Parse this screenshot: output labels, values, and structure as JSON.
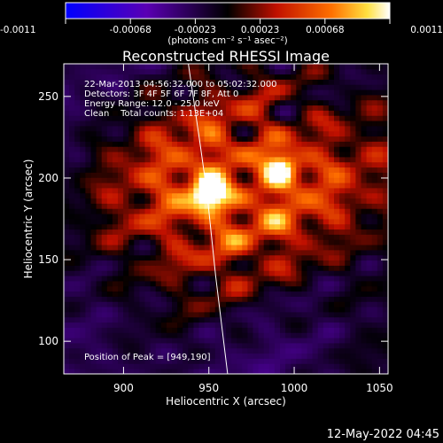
{
  "colorbar": {
    "ticks": [
      "-0.0011",
      "-0.00068",
      "-0.00023",
      "0.00023",
      "0.00068",
      "0.0011"
    ],
    "units": "(photons cm⁻² s⁻¹ asec⁻²)"
  },
  "chart_data": {
    "type": "heatmap",
    "title": "Reconstructed RHESSI Image",
    "xlabel": "Heliocentric X (arcsec)",
    "ylabel": "Heliocentric Y (arcsec)",
    "xlim": [
      865,
      1055
    ],
    "ylim": [
      80,
      270
    ],
    "xticks": [
      900,
      950,
      1000,
      1050
    ],
    "yticks": [
      100,
      150,
      200,
      250
    ],
    "zlim": [
      -0.0011,
      0.0011
    ],
    "sources": [
      {
        "x": 949,
        "y": 190,
        "peak": 0.0011
      },
      {
        "x": 993,
        "y": 207,
        "peak": 0.0008
      }
    ],
    "limb": [
      [
        938,
        270
      ],
      [
        945,
        220
      ],
      [
        949,
        190
      ],
      [
        954,
        140
      ],
      [
        961,
        80
      ]
    ],
    "annotations": [
      "22-Mar-2013 04:56:32.000 to 05:02:32.000",
      "Detectors: 3F 4F 5F 6F 7F 8F, Att 0",
      "Energy Range: 12.0 - 25.0 keV",
      "Clean    Total counts: 1.13E+04"
    ],
    "peak_label": "Position of Peak = [949,190]",
    "colormap": "blue-purple-black-red-yellow-white"
  },
  "timestamp": "12-May-2022 04:45"
}
